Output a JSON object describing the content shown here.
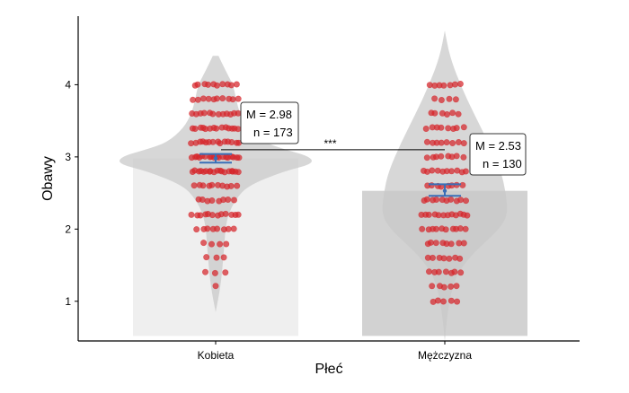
{
  "chart_data": {
    "type": "violin-bar-dot",
    "xlabel": "Płeć",
    "ylabel": "Obawy",
    "ylim": [
      0.45,
      4.95
    ],
    "yticks": [
      1,
      2,
      3,
      4
    ],
    "categories": [
      "Kobieta",
      "Mężczyzna"
    ],
    "groups": [
      {
        "label": "Kobieta",
        "mean": 2.98,
        "ci": [
          2.92,
          3.04
        ],
        "n": 173,
        "mean_label": "M = 2.98",
        "n_label": "n = 173",
        "bar_color": "#efefef",
        "violin": [
          [
            4.4,
            0.03
          ],
          [
            4.2,
            0.1
          ],
          [
            4.0,
            0.18
          ],
          [
            3.8,
            0.21
          ],
          [
            3.6,
            0.25
          ],
          [
            3.4,
            0.33
          ],
          [
            3.2,
            0.5
          ],
          [
            3.1,
            0.72
          ],
          [
            3.0,
            0.98
          ],
          [
            2.9,
            1.0
          ],
          [
            2.8,
            0.7
          ],
          [
            2.6,
            0.33
          ],
          [
            2.4,
            0.2
          ],
          [
            2.2,
            0.13
          ],
          [
            2.0,
            0.1
          ],
          [
            1.6,
            0.08
          ],
          [
            1.2,
            0.05
          ],
          [
            0.85,
            0.0
          ]
        ],
        "points": [
          4.0,
          4.0,
          4.0,
          4.0,
          4.0,
          4.0,
          4.0,
          4.0,
          4.0,
          4.0,
          3.8,
          3.8,
          3.8,
          3.8,
          3.8,
          3.8,
          3.8,
          3.8,
          3.8,
          3.8,
          3.6,
          3.6,
          3.6,
          3.6,
          3.6,
          3.6,
          3.6,
          3.6,
          3.6,
          3.6,
          3.6,
          3.6,
          3.4,
          3.4,
          3.4,
          3.4,
          3.4,
          3.4,
          3.4,
          3.4,
          3.4,
          3.4,
          3.4,
          3.4,
          3.4,
          3.4,
          3.2,
          3.2,
          3.2,
          3.2,
          3.2,
          3.2,
          3.2,
          3.2,
          3.2,
          3.2,
          3.2,
          3.2,
          3.2,
          3.2,
          3.0,
          3.0,
          3.0,
          3.0,
          3.0,
          3.0,
          3.0,
          3.0,
          3.0,
          3.0,
          3.0,
          3.0,
          3.0,
          3.0,
          3.0,
          3.0,
          3.0,
          3.0,
          2.8,
          2.8,
          2.8,
          2.8,
          2.8,
          2.8,
          2.8,
          2.8,
          2.8,
          2.8,
          2.8,
          2.8,
          2.8,
          2.8,
          2.8,
          2.8,
          2.8,
          2.8,
          2.6,
          2.6,
          2.6,
          2.6,
          2.6,
          2.6,
          2.6,
          2.6,
          2.6,
          2.6,
          2.4,
          2.4,
          2.4,
          2.4,
          2.4,
          2.4,
          2.4,
          2.4,
          2.2,
          2.2,
          2.2,
          2.2,
          2.2,
          2.2,
          2.2,
          2.2,
          2.2,
          2.2,
          2.2,
          2.2,
          2.0,
          2.0,
          2.0,
          2.0,
          2.0,
          2.0,
          2.0,
          2.0,
          1.8,
          1.8,
          1.8,
          1.8,
          1.6,
          1.6,
          1.6,
          1.4,
          1.4,
          1.4,
          1.2
        ]
      },
      {
        "label": "Mężczyzna",
        "mean": 2.53,
        "ci": [
          2.46,
          2.62
        ],
        "n": 130,
        "mean_label": "M = 2.53",
        "n_label": "n = 130",
        "bar_color": "#d2d2d2",
        "violin": [
          [
            4.75,
            0.0
          ],
          [
            4.4,
            0.05
          ],
          [
            4.0,
            0.16
          ],
          [
            3.6,
            0.3
          ],
          [
            3.2,
            0.45
          ],
          [
            2.8,
            0.58
          ],
          [
            2.5,
            0.63
          ],
          [
            2.2,
            0.65
          ],
          [
            2.0,
            0.56
          ],
          [
            1.8,
            0.4
          ],
          [
            1.6,
            0.25
          ],
          [
            1.4,
            0.14
          ],
          [
            1.2,
            0.08
          ],
          [
            1.0,
            0.05
          ],
          [
            0.75,
            0.02
          ],
          [
            0.45,
            0.0
          ]
        ],
        "points": [
          4.0,
          4.0,
          4.0,
          4.0,
          4.0,
          4.0,
          4.0,
          3.8,
          3.8,
          3.8,
          3.8,
          3.6,
          3.6,
          3.6,
          3.6,
          3.6,
          3.6,
          3.4,
          3.4,
          3.4,
          3.4,
          3.4,
          3.4,
          3.4,
          3.4,
          3.2,
          3.2,
          3.2,
          3.2,
          3.2,
          3.2,
          3.2,
          3.2,
          3.0,
          3.0,
          3.0,
          3.0,
          3.0,
          3.0,
          3.0,
          3.0,
          2.8,
          2.8,
          2.8,
          2.8,
          2.8,
          2.8,
          2.8,
          2.8,
          2.8,
          2.8,
          2.6,
          2.6,
          2.6,
          2.6,
          2.6,
          2.6,
          2.6,
          2.6,
          2.4,
          2.4,
          2.4,
          2.4,
          2.4,
          2.4,
          2.4,
          2.4,
          2.4,
          2.4,
          2.2,
          2.2,
          2.2,
          2.2,
          2.2,
          2.2,
          2.2,
          2.2,
          2.2,
          2.2,
          2.2,
          2.2,
          2.0,
          2.0,
          2.0,
          2.0,
          2.0,
          2.0,
          2.0,
          2.0,
          2.0,
          2.0,
          1.8,
          1.8,
          1.8,
          1.8,
          1.8,
          1.8,
          1.8,
          1.8,
          1.6,
          1.6,
          1.6,
          1.6,
          1.6,
          1.6,
          1.6,
          1.4,
          1.4,
          1.4,
          1.4,
          1.4,
          1.4,
          1.4,
          1.2,
          1.2,
          1.2,
          1.2,
          1.2,
          1.0,
          1.0,
          1.0,
          1.0,
          1.0
        ]
      }
    ],
    "significance": {
      "label": "***",
      "between": [
        "Kobieta",
        "Mężczyzna"
      ]
    },
    "colors": {
      "points": "#d6262b",
      "violin": "#c8c8c8",
      "error_bar": "#3a6fb7",
      "axis": "#000000"
    },
    "grid": false,
    "legend": "none"
  }
}
